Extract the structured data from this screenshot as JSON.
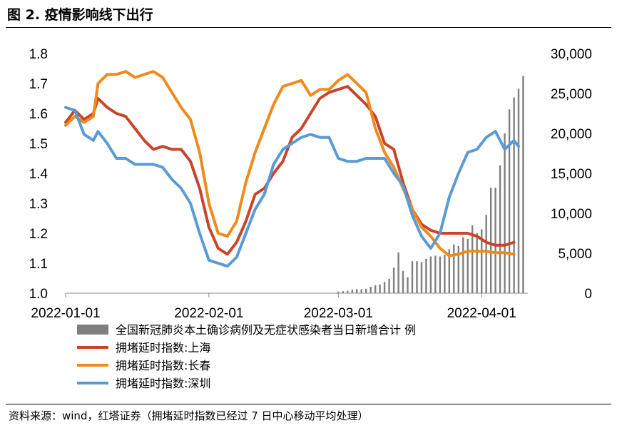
{
  "figure": {
    "title": "图 2. 疫情影响线下出行",
    "source": "资料来源：wind，红塔证券（拥堵延时指数已经过 7 日中心移动平均处理）"
  },
  "colors": {
    "bars": "#7f7f7f",
    "shanghai": "#c8452b",
    "changchun": "#ef8b1d",
    "shenzhen": "#5b9bd5"
  },
  "chart_data": {
    "type": "bar+line",
    "title": "图 2. 疫情影响线下出行",
    "x_range": [
      "2022-01-01",
      "2022-04-11"
    ],
    "x_ticks": [
      "2022-01-01",
      "2022-02-01",
      "2022-03-01",
      "2022-04-01"
    ],
    "y_left": {
      "min": 1.0,
      "max": 1.8,
      "ticks": [
        "1.0",
        "1.1",
        "1.2",
        "1.3",
        "1.4",
        "1.5",
        "1.6",
        "1.7",
        "1.8"
      ]
    },
    "y_right": {
      "min": 0,
      "max": 30000,
      "ticks": [
        "0",
        "5,000",
        "10,000",
        "15,000",
        "20,000",
        "25,000",
        "30,000"
      ]
    },
    "legend_position": "bottom",
    "bar_series": {
      "name": "全国新冠肺炎本土确诊病例及无症状感染者当日新增合计 例",
      "axis": "right",
      "dates": [
        "2022-03-01",
        "2022-03-02",
        "2022-03-03",
        "2022-03-04",
        "2022-03-05",
        "2022-03-06",
        "2022-03-07",
        "2022-03-08",
        "2022-03-09",
        "2022-03-10",
        "2022-03-11",
        "2022-03-12",
        "2022-03-13",
        "2022-03-14",
        "2022-03-15",
        "2022-03-16",
        "2022-03-17",
        "2022-03-18",
        "2022-03-19",
        "2022-03-20",
        "2022-03-21",
        "2022-03-22",
        "2022-03-23",
        "2022-03-24",
        "2022-03-25",
        "2022-03-26",
        "2022-03-27",
        "2022-03-28",
        "2022-03-29",
        "2022-03-30",
        "2022-03-31",
        "2022-04-01",
        "2022-04-02",
        "2022-04-03",
        "2022-04-04",
        "2022-04-05",
        "2022-04-06",
        "2022-04-07",
        "2022-04-08",
        "2022-04-09",
        "2022-04-10"
      ],
      "values": [
        200,
        250,
        300,
        450,
        500,
        500,
        550,
        800,
        1000,
        1100,
        1400,
        1800,
        3200,
        5100,
        2800,
        2000,
        4000,
        4000,
        3900,
        4300,
        4600,
        4700,
        4600,
        4800,
        5500,
        6100,
        5900,
        7000,
        6800,
        8500,
        7500,
        8000,
        9800,
        13200,
        13200,
        16000,
        20000,
        23000,
        24500,
        25600,
        27200
      ]
    },
    "series": [
      {
        "name": "拥堵延时指数:上海",
        "axis": "left",
        "points": [
          [
            "2022-01-01",
            1.57
          ],
          [
            "2022-01-03",
            1.61
          ],
          [
            "2022-01-05",
            1.58
          ],
          [
            "2022-01-07",
            1.6
          ],
          [
            "2022-01-08",
            1.65
          ],
          [
            "2022-01-10",
            1.62
          ],
          [
            "2022-01-12",
            1.6
          ],
          [
            "2022-01-14",
            1.59
          ],
          [
            "2022-01-16",
            1.55
          ],
          [
            "2022-01-18",
            1.51
          ],
          [
            "2022-01-20",
            1.48
          ],
          [
            "2022-01-22",
            1.49
          ],
          [
            "2022-01-24",
            1.48
          ],
          [
            "2022-01-26",
            1.48
          ],
          [
            "2022-01-28",
            1.44
          ],
          [
            "2022-01-30",
            1.35
          ],
          [
            "2022-02-01",
            1.22
          ],
          [
            "2022-02-03",
            1.15
          ],
          [
            "2022-02-05",
            1.13
          ],
          [
            "2022-02-07",
            1.17
          ],
          [
            "2022-02-09",
            1.24
          ],
          [
            "2022-02-11",
            1.33
          ],
          [
            "2022-02-13",
            1.35
          ],
          [
            "2022-02-15",
            1.4
          ],
          [
            "2022-02-17",
            1.44
          ],
          [
            "2022-02-19",
            1.52
          ],
          [
            "2022-02-21",
            1.55
          ],
          [
            "2022-02-23",
            1.6
          ],
          [
            "2022-02-25",
            1.65
          ],
          [
            "2022-02-27",
            1.67
          ],
          [
            "2022-03-01",
            1.68
          ],
          [
            "2022-03-03",
            1.69
          ],
          [
            "2022-03-05",
            1.66
          ],
          [
            "2022-03-07",
            1.63
          ],
          [
            "2022-03-09",
            1.59
          ],
          [
            "2022-03-11",
            1.5
          ],
          [
            "2022-03-13",
            1.48
          ],
          [
            "2022-03-15",
            1.37
          ],
          [
            "2022-03-17",
            1.28
          ],
          [
            "2022-03-19",
            1.23
          ],
          [
            "2022-03-21",
            1.21
          ],
          [
            "2022-03-23",
            1.2
          ],
          [
            "2022-03-25",
            1.2
          ],
          [
            "2022-03-27",
            1.2
          ],
          [
            "2022-03-29",
            1.2
          ],
          [
            "2022-03-31",
            1.19
          ],
          [
            "2022-04-02",
            1.17
          ],
          [
            "2022-04-04",
            1.16
          ],
          [
            "2022-04-06",
            1.16
          ],
          [
            "2022-04-08",
            1.17
          ]
        ]
      },
      {
        "name": "拥堵延时指数:长春",
        "axis": "left",
        "points": [
          [
            "2022-01-01",
            1.56
          ],
          [
            "2022-01-03",
            1.59
          ],
          [
            "2022-01-05",
            1.57
          ],
          [
            "2022-01-07",
            1.59
          ],
          [
            "2022-01-08",
            1.7
          ],
          [
            "2022-01-10",
            1.73
          ],
          [
            "2022-01-12",
            1.73
          ],
          [
            "2022-01-14",
            1.74
          ],
          [
            "2022-01-16",
            1.72
          ],
          [
            "2022-01-18",
            1.73
          ],
          [
            "2022-01-20",
            1.74
          ],
          [
            "2022-01-22",
            1.72
          ],
          [
            "2022-01-24",
            1.67
          ],
          [
            "2022-01-26",
            1.62
          ],
          [
            "2022-01-28",
            1.58
          ],
          [
            "2022-01-30",
            1.47
          ],
          [
            "2022-02-01",
            1.3
          ],
          [
            "2022-02-03",
            1.2
          ],
          [
            "2022-02-05",
            1.19
          ],
          [
            "2022-02-07",
            1.24
          ],
          [
            "2022-02-09",
            1.37
          ],
          [
            "2022-02-11",
            1.47
          ],
          [
            "2022-02-13",
            1.55
          ],
          [
            "2022-02-15",
            1.63
          ],
          [
            "2022-02-17",
            1.69
          ],
          [
            "2022-02-19",
            1.7
          ],
          [
            "2022-02-21",
            1.71
          ],
          [
            "2022-02-23",
            1.66
          ],
          [
            "2022-02-25",
            1.68
          ],
          [
            "2022-02-27",
            1.68
          ],
          [
            "2022-03-01",
            1.71
          ],
          [
            "2022-03-03",
            1.73
          ],
          [
            "2022-03-05",
            1.7
          ],
          [
            "2022-03-07",
            1.67
          ],
          [
            "2022-03-09",
            1.55
          ],
          [
            "2022-03-11",
            1.47
          ],
          [
            "2022-03-13",
            1.42
          ],
          [
            "2022-03-15",
            1.35
          ],
          [
            "2022-03-17",
            1.28
          ],
          [
            "2022-03-19",
            1.22
          ],
          [
            "2022-03-21",
            1.19
          ],
          [
            "2022-03-23",
            1.15
          ],
          [
            "2022-03-25",
            1.125
          ],
          [
            "2022-03-27",
            1.13
          ],
          [
            "2022-03-29",
            1.14
          ],
          [
            "2022-03-31",
            1.14
          ],
          [
            "2022-04-02",
            1.14
          ],
          [
            "2022-04-04",
            1.135
          ],
          [
            "2022-04-06",
            1.135
          ],
          [
            "2022-04-08",
            1.13
          ]
        ]
      },
      {
        "name": "拥堵延时指数:深圳",
        "axis": "left",
        "points": [
          [
            "2022-01-01",
            1.62
          ],
          [
            "2022-01-03",
            1.61
          ],
          [
            "2022-01-05",
            1.53
          ],
          [
            "2022-01-07",
            1.51
          ],
          [
            "2022-01-08",
            1.54
          ],
          [
            "2022-01-10",
            1.5
          ],
          [
            "2022-01-12",
            1.45
          ],
          [
            "2022-01-14",
            1.45
          ],
          [
            "2022-01-16",
            1.43
          ],
          [
            "2022-01-18",
            1.43
          ],
          [
            "2022-01-20",
            1.43
          ],
          [
            "2022-01-22",
            1.42
          ],
          [
            "2022-01-24",
            1.38
          ],
          [
            "2022-01-26",
            1.35
          ],
          [
            "2022-01-28",
            1.3
          ],
          [
            "2022-01-30",
            1.2
          ],
          [
            "2022-02-01",
            1.11
          ],
          [
            "2022-02-03",
            1.1
          ],
          [
            "2022-02-05",
            1.09
          ],
          [
            "2022-02-07",
            1.12
          ],
          [
            "2022-02-09",
            1.2
          ],
          [
            "2022-02-11",
            1.28
          ],
          [
            "2022-02-13",
            1.33
          ],
          [
            "2022-02-15",
            1.43
          ],
          [
            "2022-02-17",
            1.48
          ],
          [
            "2022-02-19",
            1.5
          ],
          [
            "2022-02-21",
            1.52
          ],
          [
            "2022-02-23",
            1.53
          ],
          [
            "2022-02-25",
            1.52
          ],
          [
            "2022-02-27",
            1.52
          ],
          [
            "2022-03-01",
            1.45
          ],
          [
            "2022-03-03",
            1.44
          ],
          [
            "2022-03-05",
            1.44
          ],
          [
            "2022-03-07",
            1.45
          ],
          [
            "2022-03-09",
            1.45
          ],
          [
            "2022-03-11",
            1.45
          ],
          [
            "2022-03-13",
            1.4
          ],
          [
            "2022-03-15",
            1.36
          ],
          [
            "2022-03-17",
            1.26
          ],
          [
            "2022-03-19",
            1.19
          ],
          [
            "2022-03-21",
            1.15
          ],
          [
            "2022-03-23",
            1.2
          ],
          [
            "2022-03-25",
            1.32
          ],
          [
            "2022-03-27",
            1.4
          ],
          [
            "2022-03-29",
            1.47
          ],
          [
            "2022-03-31",
            1.48
          ],
          [
            "2022-04-02",
            1.52
          ],
          [
            "2022-04-04",
            1.54
          ],
          [
            "2022-04-06",
            1.48
          ],
          [
            "2022-04-08",
            1.51
          ],
          [
            "2022-04-09",
            1.49
          ]
        ]
      }
    ]
  }
}
